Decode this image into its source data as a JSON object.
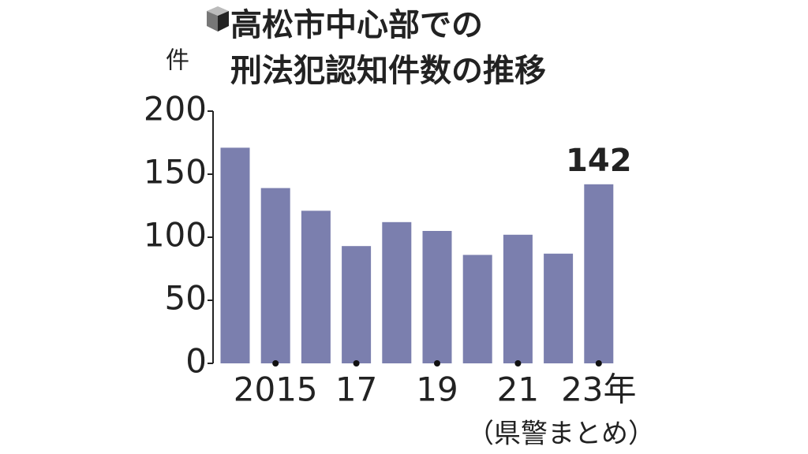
{
  "chart_data": {
    "type": "bar",
    "title": [
      "高松市中心部での",
      "刑法犯認知件数の推移"
    ],
    "y_label": "件",
    "source": "（県警まとめ）",
    "categories": [
      null,
      "2015",
      null,
      "17",
      null,
      "19",
      null,
      "21",
      null,
      "23年"
    ],
    "values": [
      171,
      139,
      121,
      93,
      112,
      105,
      86,
      102,
      87,
      142
    ],
    "color": "#7b7fae",
    "ylim": [
      0,
      200
    ],
    "yticks": [
      0,
      50,
      100,
      150,
      200
    ],
    "grid": false
  }
}
